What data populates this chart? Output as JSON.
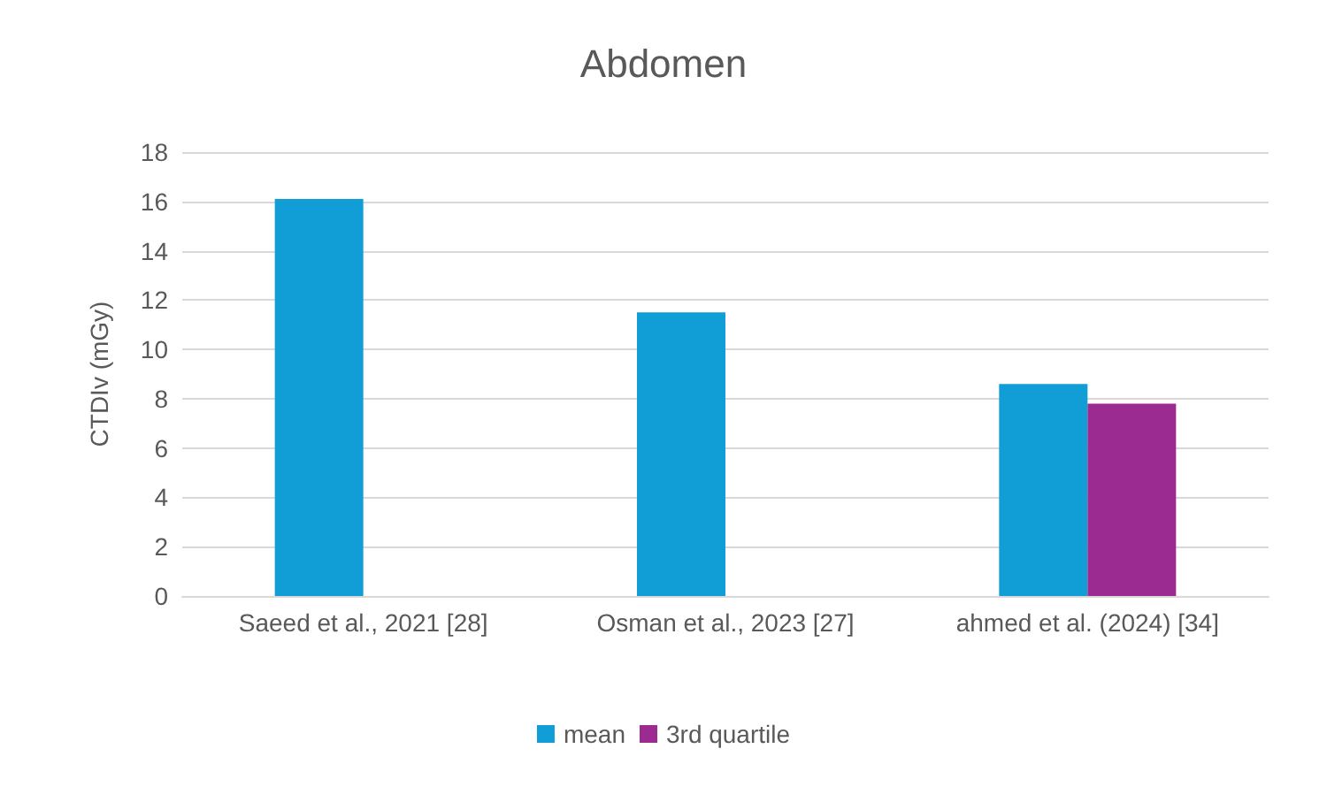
{
  "chart_data": {
    "type": "bar",
    "title": "Abdomen",
    "ylabel": "CTDIv (mGy)",
    "categories": [
      "Saeed et al., 2021 [28]",
      "Osman et al., 2023 [27]",
      "ahmed et al. (2024) [34]"
    ],
    "series": [
      {
        "name": "mean",
        "color": "#119dd6",
        "values": [
          16.1,
          11.5,
          8.6
        ]
      },
      {
        "name": "3rd quartile",
        "color": "#9b2a91",
        "values": [
          null,
          null,
          7.8
        ]
      }
    ],
    "ylim": [
      0,
      18
    ],
    "yticks": [
      0,
      2,
      4,
      6,
      8,
      10,
      12,
      14,
      16,
      18
    ],
    "grid": "y",
    "legend": "bottom"
  }
}
